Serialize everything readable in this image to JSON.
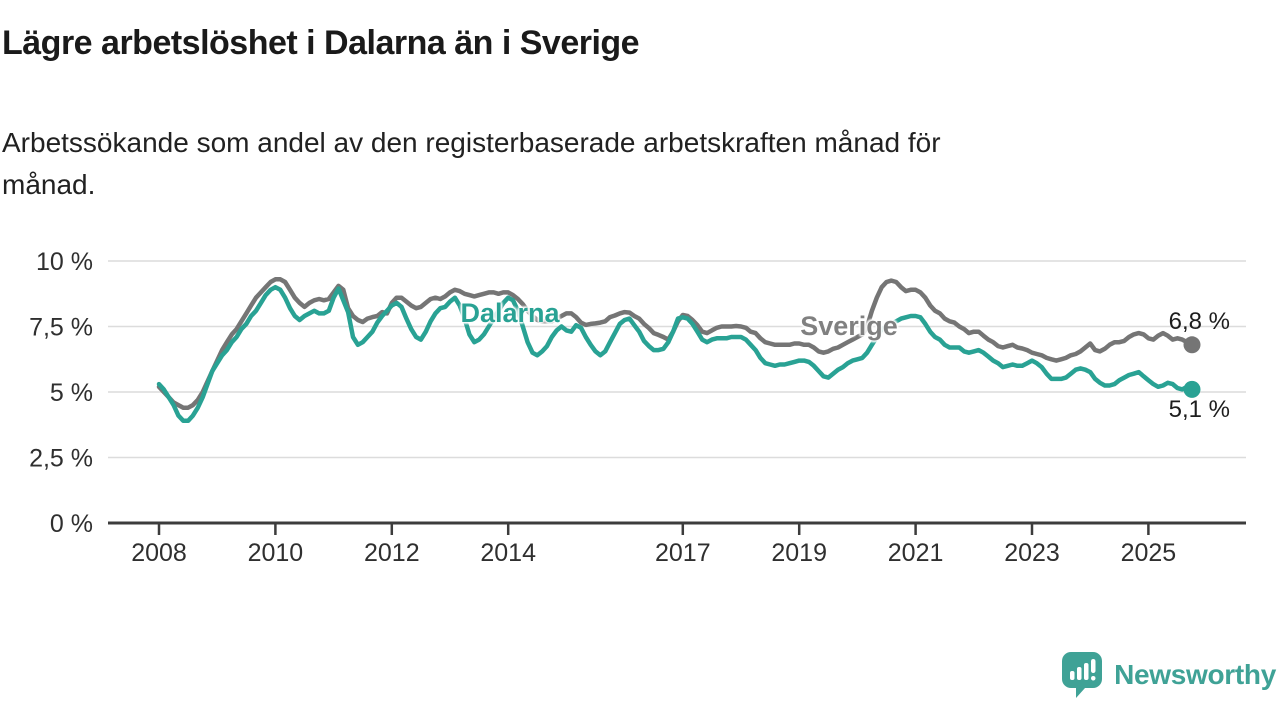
{
  "header": {
    "title": "Lägre arbetslöshet i Dalarna än i Sverige",
    "subtitle_line1": "Arbetssökande som andel av den registerbaserade arbetskraften månad för",
    "subtitle_line2": "månad."
  },
  "branding": {
    "logo_text": "Newsworthy",
    "logo_icon": "newsworthy-bar-chart-speech-bubble-icon",
    "logo_color": "#3fa296"
  },
  "colors": {
    "background": "#ffffff",
    "title_text": "#1a1a1a",
    "subtitle_text": "#212121",
    "grid_line": "#dcdcdc",
    "axis_line": "#3c3c3c",
    "tick_label": "#2f2f2f",
    "dalarna_teal": "#29a294",
    "sverige_gray": "#757575",
    "sverige_label_gray": "#808080",
    "end_label_text": "#1d1d1d"
  },
  "chart_data": {
    "type": "line",
    "frequency": "monthly",
    "x_range": {
      "start": "2008-01",
      "end": "2025-10"
    },
    "ylim": [
      0,
      10
    ],
    "grid": true,
    "legend_position": "inline-labels",
    "y_ticks": [
      {
        "value": 10,
        "label": "10 %"
      },
      {
        "value": 7.5,
        "label": "7,5 %"
      },
      {
        "value": 5,
        "label": "5 %"
      },
      {
        "value": 2.5,
        "label": "2,5 %"
      },
      {
        "value": 0,
        "label": "0 %"
      }
    ],
    "x_ticks": [
      {
        "year": 2008,
        "label": "2008"
      },
      {
        "year": 2010,
        "label": "2010"
      },
      {
        "year": 2012,
        "label": "2012"
      },
      {
        "year": 2014,
        "label": "2014"
      },
      {
        "year": 2017,
        "label": "2017"
      },
      {
        "year": 2019,
        "label": "2019"
      },
      {
        "year": 2021,
        "label": "2021"
      },
      {
        "year": 2023,
        "label": "2023"
      },
      {
        "year": 2025,
        "label": "2025"
      }
    ],
    "series": [
      {
        "name": "Sverige",
        "color": "#757575",
        "end_label": "6,8 %",
        "end_value": 6.8,
        "values": [
          5.2,
          5.0,
          4.8,
          4.6,
          4.5,
          4.4,
          4.4,
          4.5,
          4.7,
          5.0,
          5.4,
          5.8,
          6.2,
          6.6,
          6.9,
          7.2,
          7.4,
          7.7,
          8.0,
          8.3,
          8.6,
          8.8,
          9.0,
          9.2,
          9.3,
          9.3,
          9.2,
          8.9,
          8.6,
          8.4,
          8.25,
          8.4,
          8.5,
          8.55,
          8.5,
          8.55,
          8.8,
          9.05,
          8.9,
          8.2,
          7.9,
          7.75,
          7.67,
          7.8,
          7.86,
          7.9,
          8.05,
          8.0,
          8.4,
          8.6,
          8.6,
          8.45,
          8.3,
          8.2,
          8.25,
          8.4,
          8.55,
          8.6,
          8.55,
          8.65,
          8.8,
          8.9,
          8.85,
          8.75,
          8.7,
          8.65,
          8.7,
          8.75,
          8.8,
          8.8,
          8.75,
          8.8,
          8.8,
          8.7,
          8.55,
          8.35,
          8.1,
          7.9,
          7.75,
          7.7,
          7.7,
          7.7,
          7.8,
          7.9,
          8.0,
          8.0,
          7.86,
          7.65,
          7.56,
          7.6,
          7.62,
          7.65,
          7.7,
          7.86,
          7.92,
          8.0,
          8.05,
          8.03,
          7.9,
          7.8,
          7.6,
          7.44,
          7.25,
          7.18,
          7.1,
          7.0,
          7.3,
          7.7,
          7.94,
          7.9,
          7.75,
          7.55,
          7.3,
          7.25,
          7.35,
          7.45,
          7.5,
          7.5,
          7.5,
          7.52,
          7.5,
          7.45,
          7.3,
          7.25,
          7.05,
          6.9,
          6.85,
          6.8,
          6.8,
          6.8,
          6.8,
          6.85,
          6.85,
          6.8,
          6.8,
          6.7,
          6.55,
          6.5,
          6.55,
          6.65,
          6.7,
          6.8,
          6.9,
          7.0,
          7.1,
          7.2,
          7.5,
          8.1,
          8.6,
          9.0,
          9.2,
          9.25,
          9.2,
          9.0,
          8.85,
          8.9,
          8.9,
          8.8,
          8.6,
          8.3,
          8.1,
          8.0,
          7.8,
          7.7,
          7.65,
          7.5,
          7.4,
          7.25,
          7.3,
          7.3,
          7.15,
          7.0,
          6.9,
          6.75,
          6.7,
          6.75,
          6.8,
          6.7,
          6.66,
          6.6,
          6.5,
          6.45,
          6.4,
          6.3,
          6.25,
          6.2,
          6.25,
          6.3,
          6.4,
          6.45,
          6.55,
          6.7,
          6.85,
          6.6,
          6.55,
          6.65,
          6.8,
          6.9,
          6.9,
          6.95,
          7.1,
          7.2,
          7.25,
          7.2,
          7.05,
          7.0,
          7.15,
          7.25,
          7.15,
          7.0,
          7.05,
          7.0,
          6.9,
          6.8
        ]
      },
      {
        "name": "Dalarna",
        "color": "#29a294",
        "end_label": "5,1 %",
        "end_value": 5.1,
        "values": [
          5.3,
          5.1,
          4.8,
          4.5,
          4.1,
          3.9,
          3.9,
          4.1,
          4.4,
          4.8,
          5.3,
          5.8,
          6.1,
          6.4,
          6.6,
          6.9,
          7.1,
          7.4,
          7.6,
          7.9,
          8.1,
          8.4,
          8.7,
          8.9,
          9.0,
          8.9,
          8.6,
          8.2,
          7.9,
          7.75,
          7.9,
          8.0,
          8.1,
          8.0,
          8.0,
          8.1,
          8.6,
          8.95,
          8.5,
          8.05,
          7.1,
          6.8,
          6.9,
          7.1,
          7.3,
          7.65,
          7.9,
          8.1,
          8.3,
          8.4,
          8.25,
          7.8,
          7.4,
          7.1,
          7.0,
          7.3,
          7.7,
          8.0,
          8.2,
          8.25,
          8.45,
          8.6,
          8.3,
          7.8,
          7.2,
          6.9,
          7.0,
          7.2,
          7.5,
          7.8,
          8.1,
          8.4,
          8.6,
          8.5,
          8.1,
          7.5,
          6.9,
          6.5,
          6.4,
          6.55,
          6.75,
          7.1,
          7.35,
          7.5,
          7.35,
          7.3,
          7.55,
          7.45,
          7.1,
          6.8,
          6.55,
          6.4,
          6.55,
          6.9,
          7.25,
          7.6,
          7.75,
          7.8,
          7.55,
          7.3,
          6.95,
          6.75,
          6.6,
          6.6,
          6.65,
          6.9,
          7.3,
          7.8,
          7.85,
          7.8,
          7.6,
          7.3,
          7.0,
          6.9,
          7.0,
          7.05,
          7.05,
          7.05,
          7.1,
          7.1,
          7.1,
          7.0,
          6.8,
          6.6,
          6.3,
          6.1,
          6.05,
          6.0,
          6.05,
          6.05,
          6.1,
          6.15,
          6.2,
          6.2,
          6.15,
          6.0,
          5.8,
          5.6,
          5.55,
          5.7,
          5.85,
          5.95,
          6.1,
          6.2,
          6.25,
          6.3,
          6.5,
          6.8,
          7.1,
          7.4,
          7.5,
          7.6,
          7.7,
          7.8,
          7.85,
          7.9,
          7.9,
          7.85,
          7.6,
          7.3,
          7.1,
          7.0,
          6.8,
          6.7,
          6.7,
          6.7,
          6.55,
          6.5,
          6.55,
          6.6,
          6.5,
          6.35,
          6.2,
          6.1,
          5.95,
          6.0,
          6.05,
          6.0,
          6.0,
          6.1,
          6.2,
          6.1,
          5.95,
          5.7,
          5.5,
          5.5,
          5.5,
          5.55,
          5.7,
          5.85,
          5.9,
          5.85,
          5.76,
          5.5,
          5.35,
          5.25,
          5.25,
          5.3,
          5.45,
          5.55,
          5.65,
          5.7,
          5.76,
          5.6,
          5.45,
          5.3,
          5.2,
          5.25,
          5.35,
          5.3,
          5.15,
          5.1,
          5.2,
          5.1
        ]
      }
    ]
  }
}
